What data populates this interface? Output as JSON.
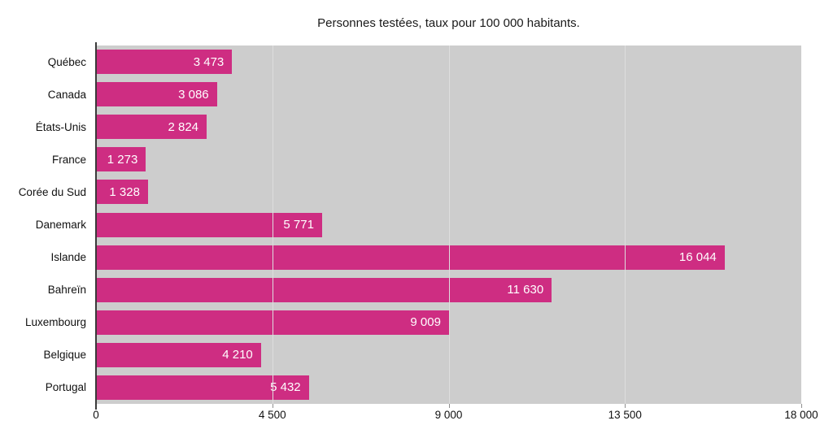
{
  "title": "Personnes testées, taux pour 100 000 habitants.",
  "colors": {
    "bar": "#ce2d82",
    "plot_background": "#cdcdcd",
    "gridline": "#dedede",
    "axis_line": "#3a3a3a",
    "tick": "#8f8f8f",
    "value_text": "#ffffff",
    "label_text": "#111111",
    "page_background": "#ffffff"
  },
  "chart_data": {
    "type": "bar",
    "orientation": "horizontal",
    "title": "Personnes testées, taux pour 100 000 habitants.",
    "categories": [
      "Québec",
      "Canada",
      "États-Unis",
      "France",
      "Corée du Sud",
      "Danemark",
      "Islande",
      "Bahreïn",
      "Luxembourg",
      "Belgique",
      "Portugal"
    ],
    "values": [
      3473,
      3086,
      2824,
      1273,
      1328,
      5771,
      16044,
      11630,
      9009,
      4210,
      5432
    ],
    "value_labels": [
      "3 473",
      "3 086",
      "2 824",
      "1 273",
      "1 328",
      "5 771",
      "16 044",
      "11 630",
      "9 009",
      "4 210",
      "5 432"
    ],
    "xlabel": "",
    "ylabel": "",
    "xlim": [
      0,
      18000
    ],
    "x_ticks": [
      0,
      4500,
      9000,
      13500,
      18000
    ],
    "x_tick_labels": [
      "0",
      "4 500",
      "9 000",
      "13 500",
      "18 000"
    ],
    "grid": "vertical-gridlines-at-ticks",
    "legend": "none",
    "value_labels_position": "inside-end"
  }
}
